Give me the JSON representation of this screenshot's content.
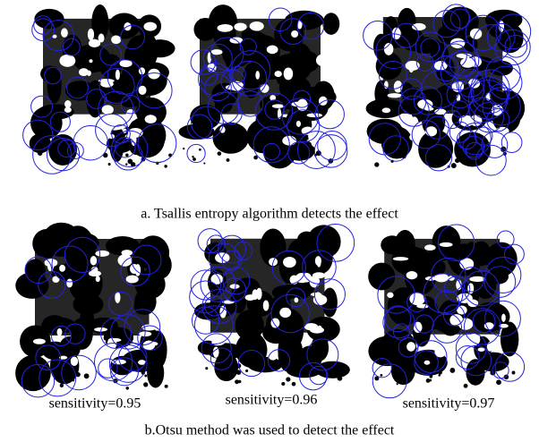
{
  "figure": {
    "top_caption": "a. Tsallis entropy algorithm detects the effect",
    "bottom_labels": [
      "sensitivity=0.95",
      "sensitivity=0.96",
      "sensitivity=0.97"
    ],
    "bottom_caption": "b.Otsu method was used to detect the effect"
  }
}
